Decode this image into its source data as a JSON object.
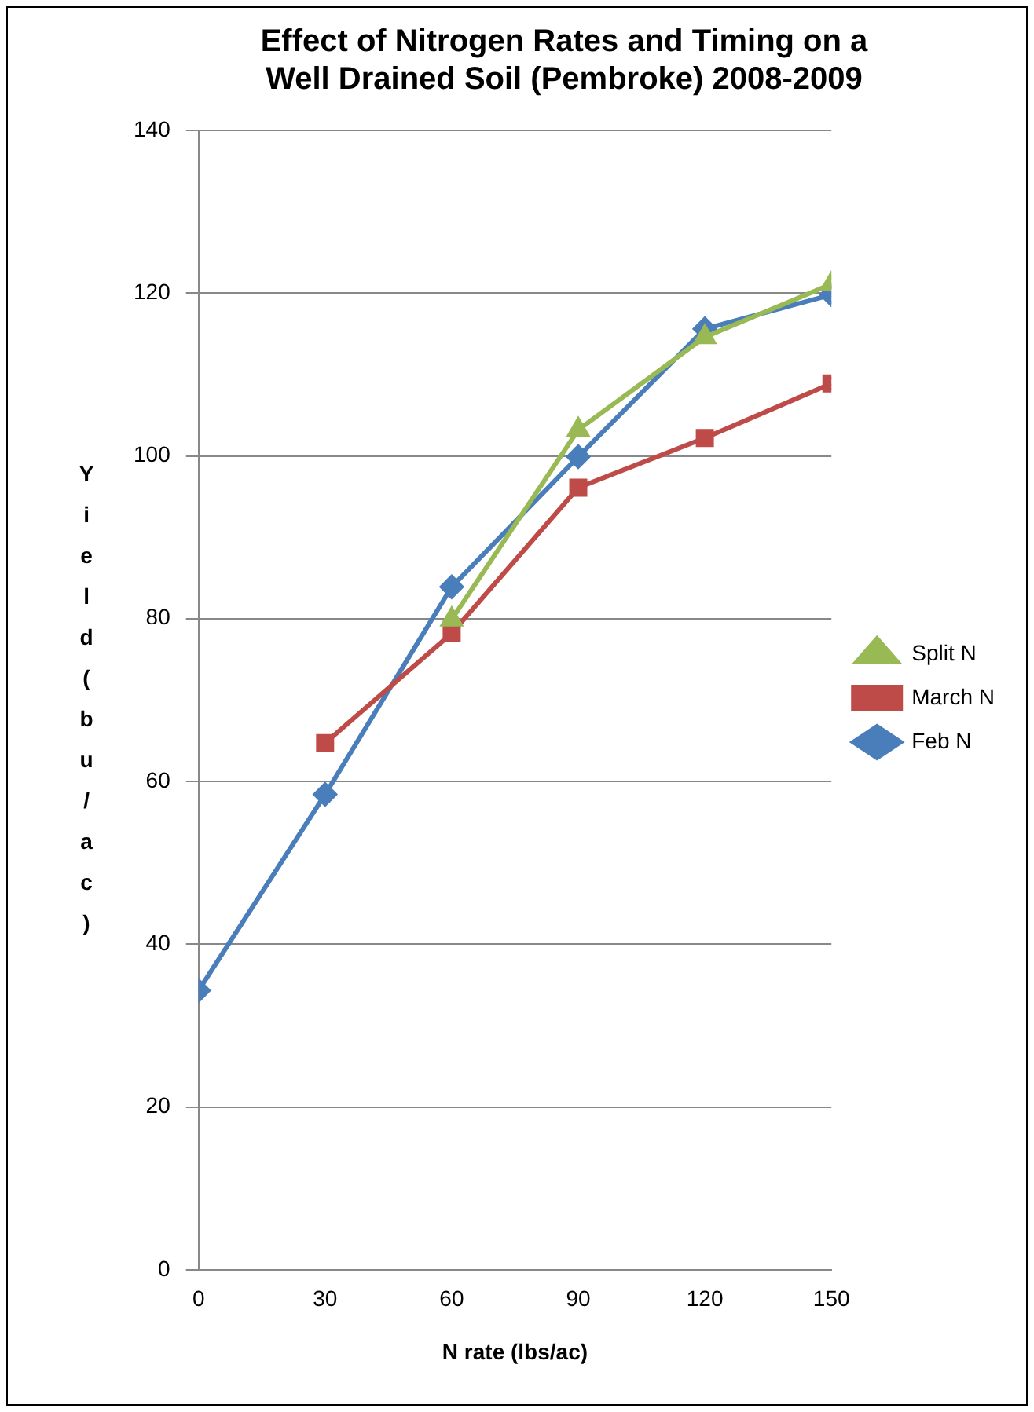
{
  "chart_data": {
    "type": "line",
    "title": "Effect of Nitrogen Rates and Timing on a Well Drained Soil (Pembroke) 2008-2009",
    "xlabel": "N rate (lbs/ac)",
    "ylabel": "Yield (bu/ac)",
    "xlim": [
      0,
      150
    ],
    "xticks": [
      0,
      30,
      60,
      90,
      120,
      150
    ],
    "ylim": [
      0,
      140
    ],
    "yticks": [
      0,
      20,
      40,
      60,
      80,
      100,
      120,
      140
    ],
    "grid": "y",
    "legend": "right",
    "line_style": "solid",
    "series": [
      {
        "name": "Feb N",
        "color": "#4a7ebb",
        "marker": "diamond",
        "x": [
          0,
          30,
          60,
          90,
          120,
          150
        ],
        "values": [
          34.3,
          58.4,
          83.9,
          99.9,
          115.6,
          119.8
        ]
      },
      {
        "name": "March N",
        "color": "#be4b48",
        "marker": "square",
        "x": [
          30,
          60,
          90,
          120,
          150
        ],
        "values": [
          64.7,
          78.2,
          96.1,
          102.2,
          108.9
        ]
      },
      {
        "name": "Split N",
        "color": "#98b954",
        "marker": "triangle",
        "x": [
          60,
          90,
          120,
          150
        ],
        "values": [
          79.9,
          103.2,
          114.6,
          121.1
        ]
      }
    ]
  }
}
